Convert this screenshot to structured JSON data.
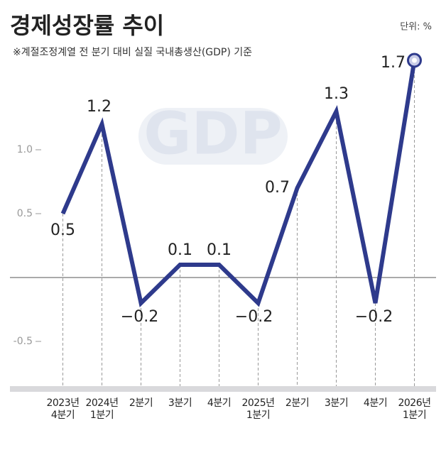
{
  "chart_data": {
    "type": "line",
    "title": "경제성장률 추이",
    "subtitle": "※계절조정계열 전 분기 대비 실질 국내총생산(GDP) 기준",
    "unit": "단위: %",
    "watermark": "GDP",
    "categories": [
      "2023년\n4분기",
      "2024년\n1분기",
      "2분기",
      "3분기",
      "4분기",
      "2025년\n1분기",
      "2분기",
      "3분기",
      "4분기",
      "2026년\n1분기"
    ],
    "values": [
      0.5,
      1.2,
      -0.2,
      0.1,
      0.1,
      -0.2,
      0.7,
      1.3,
      -0.2,
      1.7
    ],
    "value_labels": [
      "0.5",
      "1.2",
      "−0.2",
      "0.1",
      "0.1",
      "−0.2",
      "0.7",
      "1.3",
      "−0.2",
      "1.7"
    ],
    "color": "#2e3a8c",
    "ylim": [
      -0.85,
      1.85
    ],
    "yticks": [
      {
        "value": 1,
        "label": "1.0"
      },
      0.5,
      -0.5
    ]
  }
}
